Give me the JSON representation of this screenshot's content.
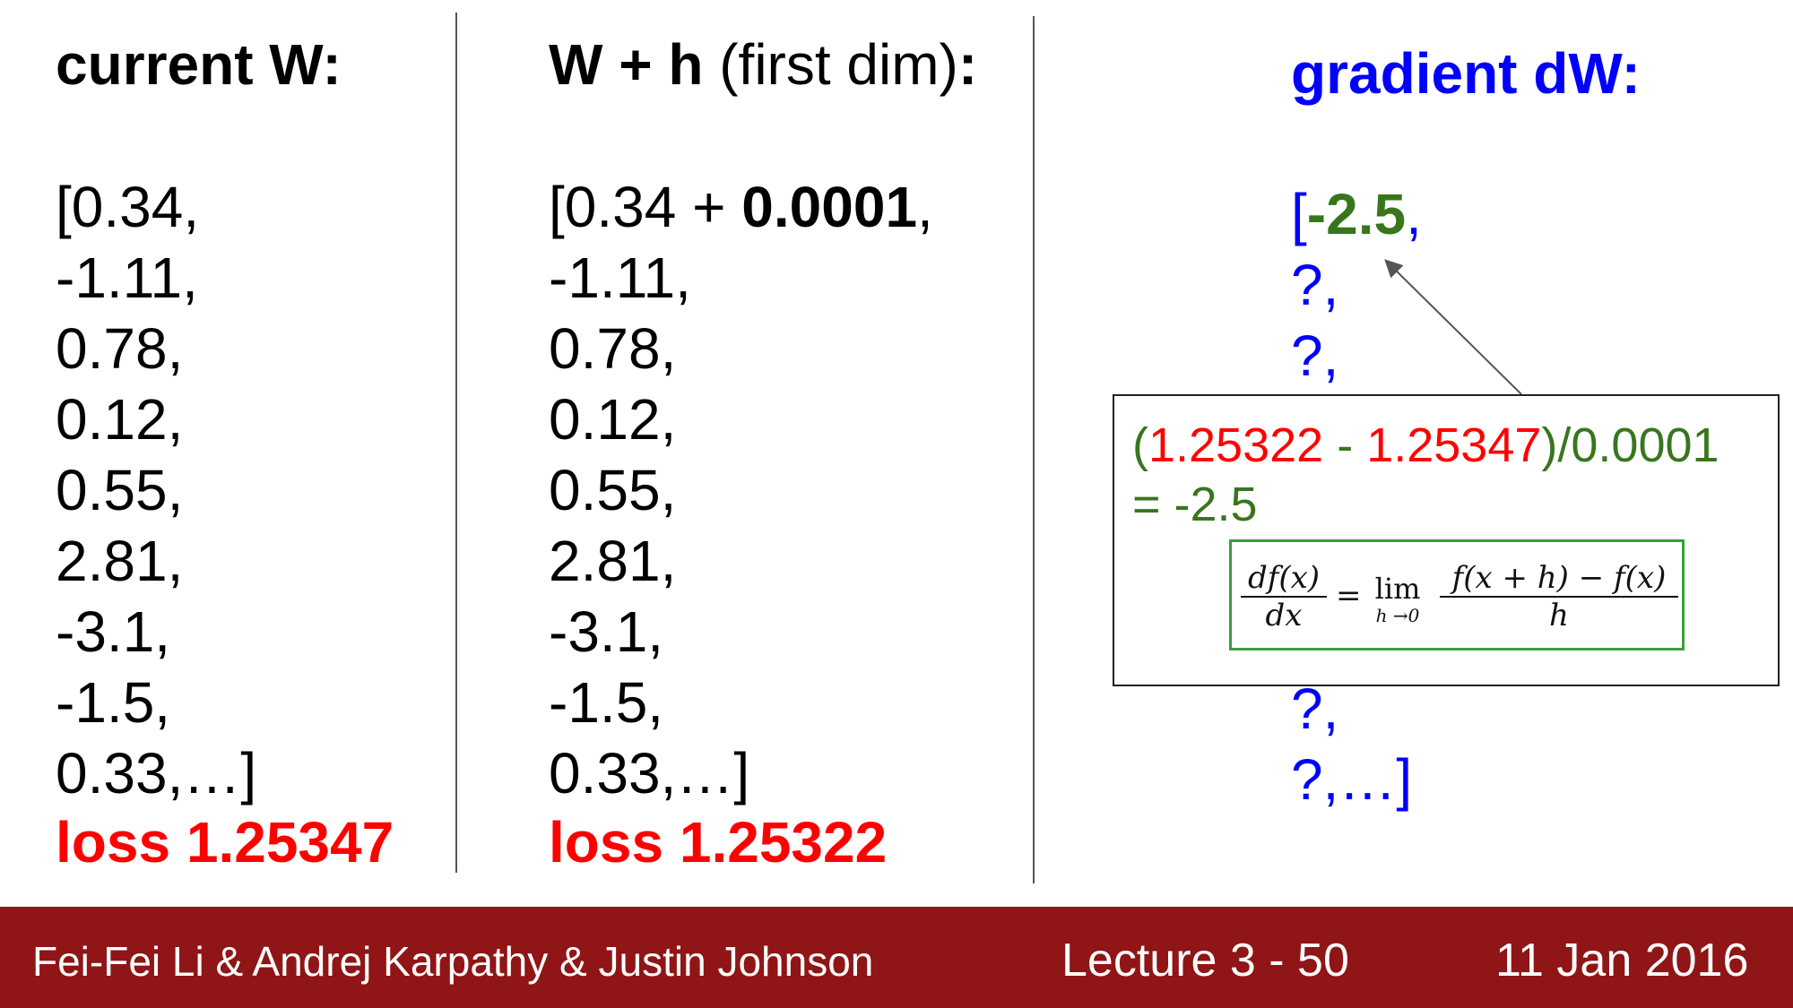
{
  "columns": [
    {
      "title_bold": "current W:",
      "title_normal": "",
      "title_bold_suffix": "",
      "values": [
        "[0.34,",
        "-1.11,",
        "0.78,",
        "0.12,",
        "0.55,",
        "2.81,",
        "-3.1,",
        "-1.5,",
        "0.33,…]"
      ],
      "loss": "loss 1.25347"
    },
    {
      "title_bold": "W + h",
      "title_normal": " (first dim)",
      "title_bold_suffix": ":",
      "first_value_prefix": "[0.34 + ",
      "first_value_bold": "0.0001",
      "first_value_suffix": ",",
      "values": [
        "-1.11,",
        "0.78,",
        "0.12,",
        "0.55,",
        "2.81,",
        "-3.1,",
        "-1.5,",
        "0.33,…]"
      ],
      "loss": "loss 1.25322"
    }
  ],
  "gradient": {
    "title": "gradient dW:",
    "first_open": "[",
    "first_value": "-2.5",
    "first_comma": ",",
    "values_top": [
      "?,",
      "?,"
    ],
    "values_bottom": [
      "?,",
      "?,…]"
    ]
  },
  "popup": {
    "open_paren": "(",
    "loss_a": "1.25322",
    "minus": " - ",
    "loss_b": "1.25347",
    "close_div": ")/0.0001",
    "result": "= -2.5",
    "formula": {
      "lhs_num": "df(x)",
      "lhs_den": "dx",
      "equals": "=",
      "lim": "lim",
      "lim_sub": "h →0",
      "rhs_num": "f(x + h) − f(x)",
      "rhs_den": "h"
    }
  },
  "footer": {
    "authors": "Fei-Fei Li & Andrej Karpathy & Justin Johnson",
    "lecture": "Lecture 3 - 50",
    "date": "11 Jan 2016"
  },
  "colors": {
    "loss_red": "#ff0000",
    "gradient_blue": "#0000ff",
    "result_green": "#38761d",
    "formula_border": "#38a03a",
    "footer_bg": "#8f1516"
  }
}
